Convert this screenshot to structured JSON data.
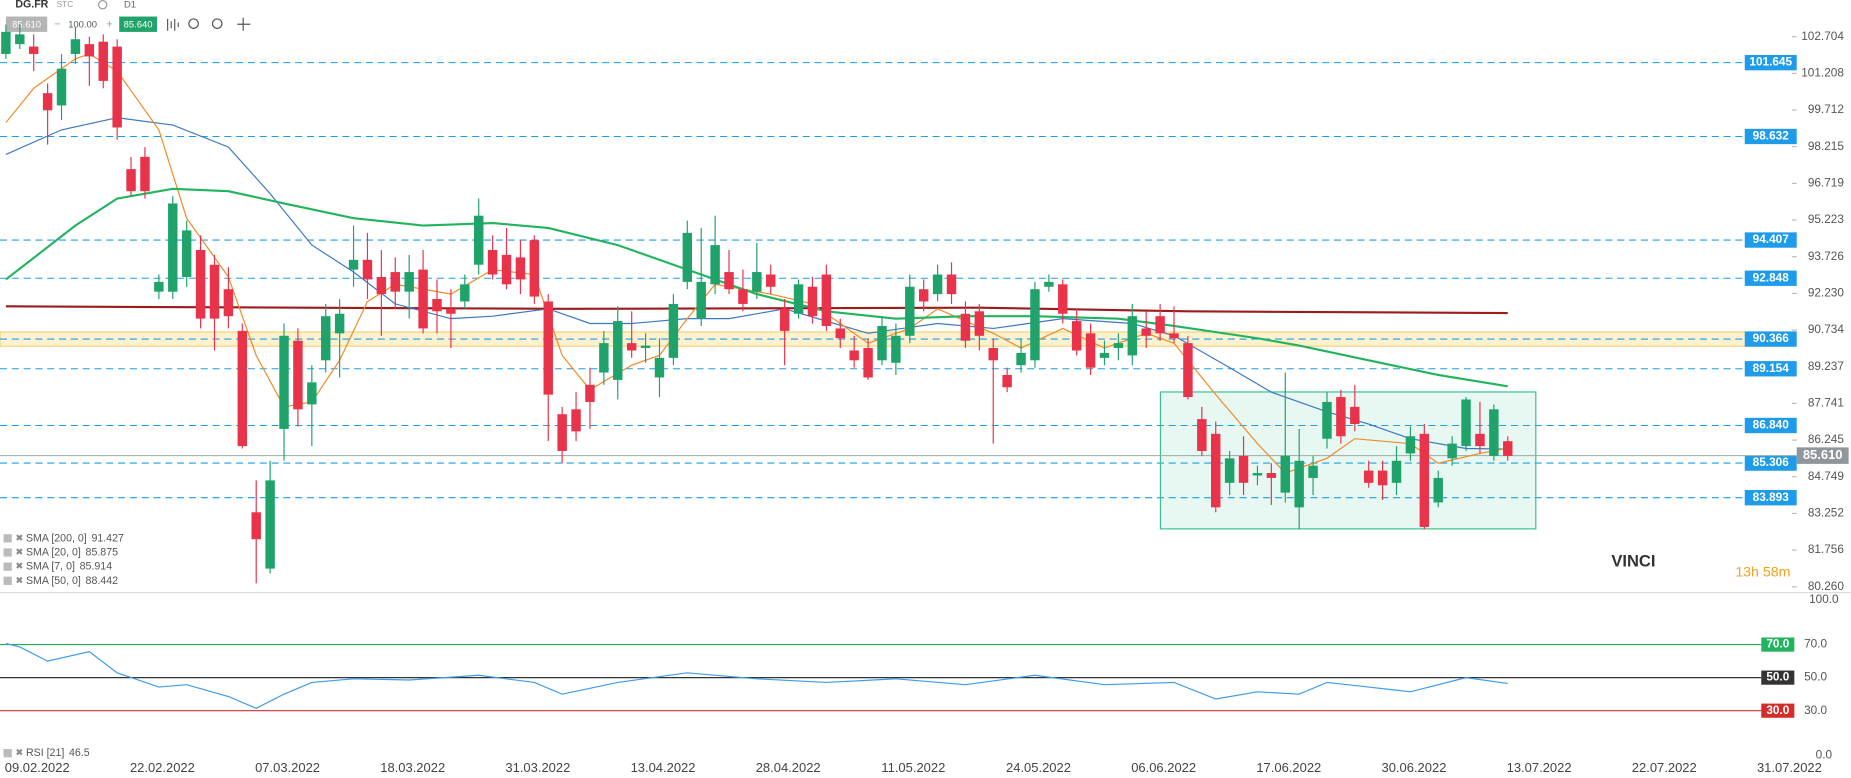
{
  "toolbar": {
    "symbol": "DG.FR",
    "kind": "STC",
    "interval": "D1",
    "sell": "85.610",
    "volume": "100.00",
    "buy": "85.640"
  },
  "annotations": {
    "name": "VINCI",
    "timer": "13h 58m"
  },
  "chart_data": {
    "type": "candlestick",
    "categories": [
      null,
      null,
      "09.02.2022",
      null,
      null,
      null,
      null,
      null,
      null,
      null,
      null,
      "22.02.2022",
      null,
      null,
      null,
      null,
      null,
      null,
      null,
      null,
      "07.03.2022",
      null,
      null,
      null,
      null,
      null,
      null,
      null,
      null,
      "18.03.2022",
      null,
      null,
      null,
      null,
      null,
      null,
      null,
      null,
      "31.03.2022",
      null,
      null,
      null,
      null,
      null,
      null,
      null,
      null,
      "13.04.2022",
      null,
      null,
      null,
      null,
      null,
      null,
      null,
      null,
      "28.04.2022",
      null,
      null,
      null,
      null,
      null,
      null,
      null,
      null,
      "11.05.2022",
      null,
      null,
      null,
      null,
      null,
      null,
      null,
      null,
      "24.05.2022",
      null,
      null,
      null,
      null,
      null,
      null,
      null,
      null,
      "06.06.2022",
      null,
      null,
      null,
      null,
      null,
      null,
      null,
      null,
      "17.06.2022",
      null,
      null,
      null,
      null,
      null,
      null,
      null,
      null,
      "30.06.2022",
      null,
      null,
      null,
      null,
      null,
      null,
      null,
      null,
      "13.07.2022",
      null,
      null,
      null,
      null,
      null,
      null,
      null,
      null,
      "22.07.2022",
      null,
      null,
      null,
      null,
      null,
      null,
      null,
      null,
      "31.07.2022"
    ],
    "open": [
      102.0,
      102.4,
      102.3,
      100.4,
      99.9,
      102.0,
      102.4,
      102.5,
      102.3,
      97.3,
      97.8,
      92.3,
      92.3,
      92.9,
      94.0,
      93.4,
      92.4,
      90.7,
      83.3,
      81.0,
      86.7,
      90.3,
      87.7,
      89.5,
      90.6,
      93.2,
      93.6,
      92.9,
      93.1,
      92.3,
      93.2,
      92.0,
      91.6,
      91.9,
      93.4,
      94.0,
      93.8,
      93.7,
      94.4,
      91.9,
      87.3,
      87.5,
      88.5,
      89.0,
      88.7,
      90.2,
      90.0,
      88.8,
      89.6,
      92.7,
      91.2,
      92.6,
      93.1,
      92.4,
      92.3,
      93.0,
      91.6,
      91.4,
      92.5,
      93.0,
      90.8,
      89.9,
      90.0,
      89.5,
      89.4,
      90.5,
      92.4,
      92.2,
      93.0,
      91.4,
      91.5,
      90.0,
      88.9,
      89.3,
      89.5,
      92.5,
      92.6,
      91.1,
      90.6,
      89.6,
      90.0,
      89.7,
      90.8,
      91.3,
      90.6,
      90.2,
      87.1,
      86.5,
      84.5,
      85.6,
      84.8,
      84.9,
      84.1,
      83.5,
      84.7,
      86.3,
      88.0,
      87.6,
      85.0,
      85.0,
      84.5,
      85.7,
      86.5,
      83.7,
      85.5,
      86.0,
      86.5,
      85.6,
      86.2,
      null,
      null,
      null,
      null,
      null,
      null,
      null,
      null,
      null,
      null,
      null,
      null,
      null,
      null,
      null,
      null,
      null,
      null,
      null,
      null
    ],
    "high": [
      103.2,
      103.2,
      102.8,
      100.8,
      102.0,
      103.1,
      102.7,
      102.8,
      102.6,
      97.8,
      98.2,
      93.0,
      96.2,
      95.2,
      94.6,
      93.8,
      93.3,
      91.0,
      84.6,
      85.4,
      91.0,
      90.8,
      89.3,
      91.8,
      92.0,
      95.0,
      94.7,
      94.0,
      93.7,
      93.8,
      94.0,
      92.8,
      92.4,
      93.0,
      96.1,
      94.6,
      94.9,
      94.4,
      94.6,
      92.2,
      87.6,
      88.2,
      89.2,
      90.7,
      91.7,
      91.5,
      90.6,
      90.4,
      92.2,
      95.2,
      94.9,
      95.4,
      94.0,
      93.2,
      94.3,
      93.4,
      92.0,
      92.8,
      92.9,
      93.4,
      91.2,
      90.5,
      90.4,
      91.3,
      91.0,
      93.0,
      92.8,
      93.4,
      93.5,
      91.9,
      91.8,
      90.4,
      89.2,
      90.4,
      92.7,
      93.0,
      92.8,
      91.6,
      91.0,
      90.3,
      90.6,
      91.8,
      91.5,
      91.8,
      91.7,
      90.5,
      87.6,
      87.0,
      85.8,
      86.4,
      85.2,
      85.3,
      89.0,
      86.7,
      85.6,
      88.2,
      88.3,
      88.5,
      85.4,
      85.4,
      86.0,
      86.8,
      86.9,
      85.0,
      86.4,
      88.0,
      87.8,
      87.7,
      86.4,
      null,
      null,
      null,
      null,
      null,
      null,
      null,
      null,
      null,
      null,
      null,
      null,
      null,
      null,
      null,
      null,
      null,
      null,
      null,
      null
    ],
    "low": [
      101.8,
      102.2,
      101.3,
      98.3,
      99.3,
      101.6,
      100.7,
      100.6,
      98.5,
      96.2,
      96.1,
      92.0,
      92.0,
      92.5,
      90.8,
      89.9,
      90.8,
      85.9,
      80.4,
      80.8,
      85.4,
      86.8,
      86.0,
      89.0,
      88.8,
      92.5,
      92.0,
      90.5,
      91.6,
      91.2,
      90.6,
      90.6,
      90.0,
      91.6,
      93.0,
      92.8,
      92.4,
      92.2,
      91.8,
      86.2,
      85.3,
      86.2,
      86.7,
      88.5,
      87.9,
      89.6,
      89.4,
      88.0,
      89.3,
      92.4,
      90.9,
      92.2,
      92.2,
      91.5,
      92.0,
      92.2,
      89.3,
      91.2,
      91.0,
      90.7,
      90.0,
      89.2,
      88.7,
      89.3,
      88.9,
      90.2,
      91.5,
      91.9,
      91.8,
      90.0,
      89.9,
      86.1,
      88.2,
      89.0,
      89.2,
      92.3,
      91.0,
      89.7,
      88.9,
      89.3,
      89.5,
      89.3,
      90.0,
      90.3,
      90.2,
      87.9,
      85.6,
      83.3,
      84.0,
      84.0,
      84.4,
      83.6,
      83.7,
      82.6,
      84.0,
      85.9,
      86.1,
      86.6,
      84.3,
      83.8,
      84.0,
      85.4,
      82.6,
      83.5,
      85.2,
      85.8,
      85.7,
      85.4,
      85.4,
      null,
      null,
      null,
      null,
      null,
      null,
      null,
      null,
      null,
      null,
      null,
      null,
      null,
      null,
      null,
      null,
      null,
      null,
      null,
      null
    ],
    "close": [
      102.9,
      102.8,
      102.0,
      99.7,
      101.4,
      102.6,
      101.9,
      100.9,
      99.0,
      96.4,
      96.4,
      92.7,
      95.9,
      94.8,
      91.2,
      91.2,
      91.3,
      86.0,
      82.2,
      84.6,
      90.5,
      87.5,
      88.6,
      91.3,
      91.4,
      93.6,
      92.8,
      92.2,
      92.3,
      93.1,
      90.8,
      91.5,
      91.4,
      92.6,
      95.4,
      93.0,
      92.6,
      92.8,
      92.1,
      88.1,
      85.8,
      86.6,
      87.8,
      90.2,
      91.1,
      89.9,
      90.1,
      89.6,
      91.8,
      94.7,
      92.7,
      94.2,
      92.4,
      91.8,
      93.1,
      92.5,
      90.7,
      92.6,
      91.3,
      90.9,
      90.4,
      89.5,
      88.8,
      90.9,
      90.5,
      92.5,
      91.9,
      93.0,
      92.2,
      90.3,
      90.5,
      89.5,
      88.4,
      89.8,
      92.4,
      92.7,
      91.4,
      89.9,
      89.2,
      89.8,
      90.2,
      91.3,
      90.5,
      90.6,
      90.4,
      88.0,
      85.8,
      83.5,
      85.5,
      84.5,
      84.9,
      84.7,
      85.6,
      85.4,
      85.2,
      87.8,
      86.4,
      86.9,
      84.5,
      84.4,
      85.4,
      86.4,
      82.7,
      84.7,
      86.1,
      87.9,
      86.0,
      87.5,
      85.6,
      null,
      null,
      null,
      null,
      null,
      null,
      null,
      null,
      null,
      null,
      null,
      null,
      null,
      null,
      null,
      null,
      null,
      null,
      null,
      null
    ],
    "up_color": "#1fa36b",
    "down_color": "#e8334a",
    "ylim": [
      80.02,
      104.2
    ],
    "yticks": [
      102.704,
      101.208,
      99.712,
      98.215,
      96.719,
      95.223,
      93.726,
      {
        "value": 92.23,
        "label": "92.230"
      },
      90.734,
      89.237,
      87.741,
      86.245,
      84.749,
      83.252,
      81.756,
      {
        "value": 80.26,
        "label": "80.260"
      }
    ],
    "levels": [
      101.645,
      98.632,
      94.407,
      92.848,
      90.366,
      89.154,
      {
        "value": 86.84,
        "label": "86.840"
      },
      85.306,
      83.893
    ],
    "level_color": "#1e9be9",
    "zone_level": 4,
    "last_price": {
      "value": 85.61,
      "label": "85.610"
    },
    "sma": [
      {
        "name": "SMA [200, 0]",
        "color": "#9b1c1c",
        "x": [
          0,
          40,
          70,
          85,
          108
        ],
        "values": [
          91.7,
          91.6,
          91.65,
          91.5,
          91.427
        ]
      },
      {
        "name": "SMA [20, 0]",
        "color": "#3b78c4",
        "x": [
          0,
          4,
          8,
          12,
          16,
          19,
          22,
          25,
          28,
          32,
          35,
          39,
          42,
          45,
          49,
          52,
          56,
          59,
          62,
          67,
          71,
          76,
          81,
          84,
          88,
          91,
          95,
          98,
          101,
          105,
          108
        ],
        "values": [
          97.9,
          98.9,
          99.4,
          99.1,
          98.2,
          96.3,
          94.2,
          93.1,
          91.8,
          91.2,
          91.3,
          91.6,
          91.0,
          91.0,
          91.2,
          91.2,
          91.6,
          91.1,
          90.6,
          91.0,
          90.8,
          91.2,
          91.0,
          90.5,
          89.2,
          88.2,
          87.4,
          86.9,
          86.3,
          85.9,
          85.875
        ]
      },
      {
        "name": "SMA [7, 0]",
        "color": "#f08a24",
        "x": [
          0,
          2,
          5,
          6,
          8,
          11,
          13,
          16,
          18,
          20,
          22,
          24,
          26,
          28,
          32,
          35,
          38,
          40,
          42,
          45,
          47,
          49,
          51,
          55,
          58,
          62,
          65,
          67,
          71,
          73,
          76,
          79,
          82,
          84,
          87,
          90,
          92,
          95,
          97,
          101,
          103,
          106,
          108
        ],
        "values": [
          99.2,
          100.6,
          101.8,
          102.0,
          101.3,
          98.9,
          95.3,
          92.9,
          89.7,
          87.6,
          87.8,
          89.5,
          91.9,
          92.6,
          92.2,
          93.2,
          93.0,
          89.7,
          88.3,
          89.3,
          89.7,
          91.2,
          92.6,
          92.2,
          91.8,
          90.2,
          90.8,
          91.6,
          90.6,
          90.0,
          90.8,
          90.0,
          90.6,
          90.2,
          88.1,
          86.1,
          84.9,
          85.5,
          86.3,
          86.1,
          85.3,
          85.7,
          85.914
        ]
      },
      {
        "name": "SMA [50, 0]",
        "color": "#22b35e",
        "x": [
          0,
          5,
          8,
          12,
          16,
          20,
          25,
          30,
          35,
          39,
          44,
          49,
          54,
          59,
          64,
          69,
          74,
          80,
          84,
          90,
          93,
          98,
          103,
          108
        ],
        "values": [
          92.8,
          95.0,
          96.1,
          96.5,
          96.4,
          95.9,
          95.3,
          95.0,
          95.1,
          94.9,
          94.2,
          93.2,
          92.2,
          91.5,
          91.2,
          91.3,
          91.3,
          91.2,
          90.9,
          90.4,
          90.1,
          89.5,
          88.9,
          88.442
        ]
      }
    ],
    "rsi": {
      "name": "RSI [21]",
      "color": "#3d9be9",
      "x": [
        0,
        1,
        3,
        6,
        8,
        11,
        13,
        16,
        18,
        20,
        22,
        25,
        29,
        34,
        38,
        40,
        44,
        49,
        54,
        59,
        64,
        69,
        74,
        79,
        84,
        87,
        90,
        93,
        95,
        98,
        101,
        105,
        108
      ],
      "values": [
        70.7,
        68.6,
        60,
        65.7,
        52.9,
        44.3,
        45.7,
        38.6,
        31.4,
        40,
        47.1,
        49.3,
        48.6,
        51.4,
        47.1,
        40,
        47.1,
        52.9,
        49.3,
        47.1,
        49.3,
        45.7,
        51.4,
        45.7,
        47.1,
        37.1,
        41.4,
        40,
        47.1,
        44.3,
        41.4,
        50,
        46.5
      ],
      "ylim": [
        0,
        100
      ],
      "yticks": [
        {
          "value": 100,
          "label": "100.0"
        },
        {
          "value": 0,
          "label": "0.0"
        }
      ],
      "levels": [
        {
          "value": 70,
          "label": "70.0",
          "color": "#22b35e"
        },
        {
          "value": 50,
          "label": "50.0",
          "color": "#333333"
        },
        {
          "value": 30,
          "label": "30.0",
          "color": "#d62b2b"
        }
      ]
    }
  }
}
